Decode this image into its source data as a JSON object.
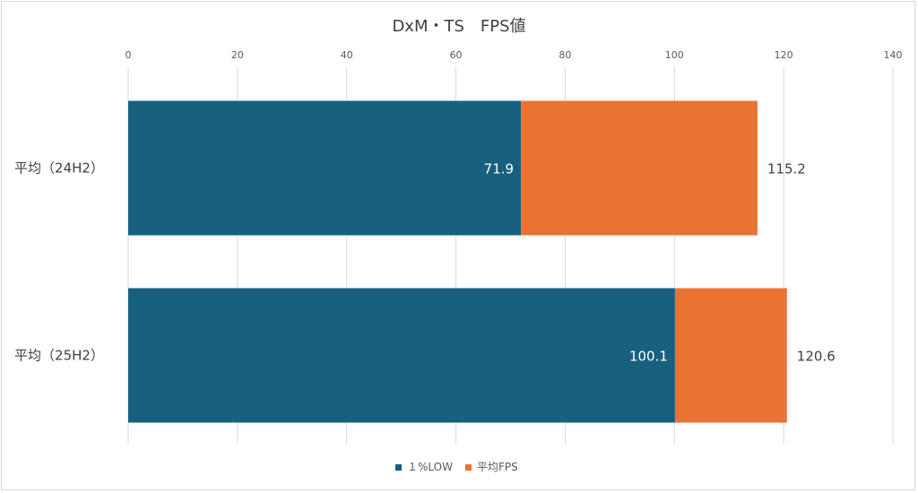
{
  "chart_data": {
    "type": "bar",
    "orientation": "horizontal",
    "stacked": true,
    "title": "DxM・TS　FPS値",
    "categories": [
      "平均（24H2）",
      "平均（25H2）"
    ],
    "series": [
      {
        "name": "１%LOW",
        "values": [
          71.9,
          100.1
        ],
        "labels": [
          "71.9",
          "100.1"
        ],
        "color": "#17607f",
        "label_position": "inside-end"
      },
      {
        "name": "平均FPS",
        "values": [
          43.3,
          20.5
        ],
        "labels": [
          "115.2",
          "120.6"
        ],
        "color": "#e87332",
        "label_position": "outside-end"
      }
    ],
    "totals": [
      115.2,
      120.6
    ],
    "xlim": [
      0,
      140
    ],
    "xticks": [
      "0",
      "20",
      "40",
      "60",
      "80",
      "100",
      "120",
      "140"
    ],
    "x_axis_position": "top",
    "grid": true,
    "legend_position": "bottom"
  }
}
